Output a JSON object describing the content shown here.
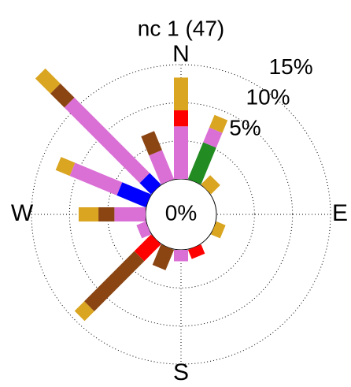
{
  "chart_data": {
    "type": "windrose",
    "title": "nc 1 (47)",
    "directions": [
      {
        "angle": 0,
        "label": "N"
      },
      {
        "angle": 90,
        "label": "E"
      },
      {
        "angle": 180,
        "label": "S"
      },
      {
        "angle": 270,
        "label": "W"
      }
    ],
    "sector_angles": [
      0,
      22.5,
      45,
      67.5,
      90,
      112.5,
      135,
      157.5,
      180,
      202.5,
      225,
      247.5,
      270,
      292.5,
      315,
      337.5
    ],
    "rlim": [
      0,
      15
    ],
    "rticks": [
      {
        "value": 0,
        "label": "0%"
      },
      {
        "value": 5,
        "label": "5%"
      },
      {
        "value": 10,
        "label": "10%"
      },
      {
        "value": 15,
        "label": "15%"
      }
    ],
    "series": [
      {
        "color": "#0000ff",
        "values": [
          0,
          0,
          0,
          0,
          0,
          0,
          0,
          0,
          0,
          0,
          0,
          0,
          0,
          4.1,
          2.1,
          0
        ]
      },
      {
        "color": "#228b22",
        "values": [
          0,
          5.2,
          0,
          0,
          0,
          0,
          0,
          0,
          0,
          0,
          0,
          0,
          0,
          0,
          0,
          0
        ]
      },
      {
        "color": "#da70d6",
        "values": [
          6.9,
          2.1,
          0,
          0,
          0,
          0,
          0,
          0,
          1.5,
          0,
          0,
          1.3,
          4.1,
          6.7,
          14,
          4.1
        ]
      },
      {
        "color": "#ff0000",
        "values": [
          2.1,
          0,
          0,
          0,
          0,
          0,
          0,
          1.3,
          0,
          0,
          3.1,
          0,
          0,
          0,
          0,
          0
        ]
      },
      {
        "color": "#8b4513",
        "values": [
          0,
          0,
          0,
          0,
          0,
          0,
          0,
          0,
          0,
          2.9,
          9.3,
          0,
          2.1,
          0,
          2.6,
          2.7
        ]
      },
      {
        "color": "#daa520",
        "values": [
          4.3,
          1.8,
          1.7,
          0,
          0,
          1.3,
          0,
          0,
          0,
          0,
          1.8,
          0,
          2.6,
          2.0,
          2.8,
          0
        ]
      }
    ]
  }
}
